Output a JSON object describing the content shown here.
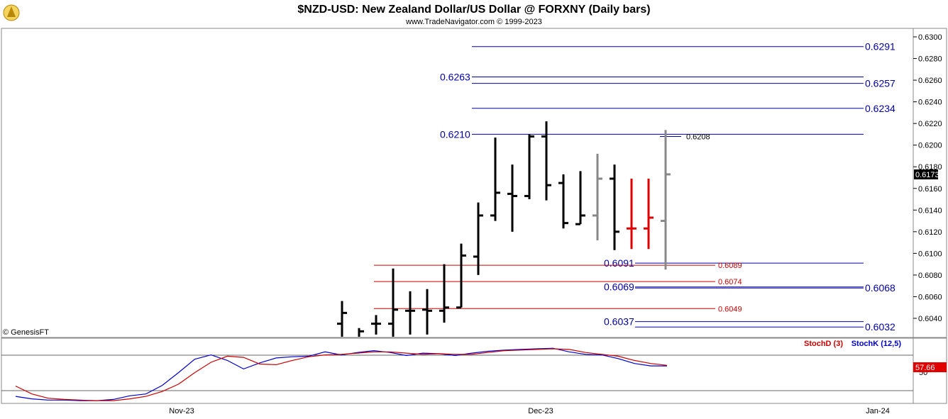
{
  "header": {
    "title": "$NZD-USD:  New Zealand Dollar/US Dollar @ FORXNY  (Daily bars)",
    "subtitle": "www.TradeNavigator.com © 1999-2023",
    "watermark": "© GenesisFT"
  },
  "colors": {
    "bar_up": "#000000",
    "bar_gray": "#888888",
    "bar_red": "#e00000",
    "level_blue": "#0000aa",
    "level_red": "#cc0000",
    "stoch_k": "#0000cc",
    "stoch_d": "#cc0000"
  },
  "chart_data": [
    {
      "type": "ohlc",
      "name": "price",
      "x_ticks": [
        "Nov-23",
        "Dec-23",
        "Jan-24"
      ],
      "ylim": [
        0.6032,
        0.6305
      ],
      "y_ticks": [
        "0.6040",
        "0.6060",
        "0.6080",
        "0.6100",
        "0.6120",
        "0.6140",
        "0.6160",
        "0.6180",
        "0.6200",
        "0.6220",
        "0.6240",
        "0.6260",
        "0.6280",
        "0.6300"
      ],
      "last_price": "0.6173",
      "bars": [
        {
          "h": 0.6056,
          "l": 0.602,
          "o": 0.6035,
          "c": 0.6045,
          "color": "black"
        },
        {
          "h": 0.6031,
          "l": 0.602,
          "o": 0.6022,
          "c": 0.6028,
          "color": "black"
        },
        {
          "h": 0.6043,
          "l": 0.6025,
          "o": 0.6035,
          "c": 0.6035,
          "color": "black"
        },
        {
          "h": 0.6086,
          "l": 0.602,
          "o": 0.6035,
          "c": 0.6048,
          "color": "black"
        },
        {
          "h": 0.6065,
          "l": 0.6025,
          "o": 0.6047,
          "c": 0.6047,
          "color": "black"
        },
        {
          "h": 0.6067,
          "l": 0.6025,
          "o": 0.6048,
          "c": 0.6047,
          "color": "black"
        },
        {
          "h": 0.609,
          "l": 0.6036,
          "o": 0.6047,
          "c": 0.605,
          "color": "black"
        },
        {
          "h": 0.6109,
          "l": 0.605,
          "o": 0.605,
          "c": 0.6098,
          "color": "black"
        },
        {
          "h": 0.6147,
          "l": 0.608,
          "o": 0.6097,
          "c": 0.6135,
          "color": "black"
        },
        {
          "h": 0.6207,
          "l": 0.613,
          "o": 0.6135,
          "c": 0.6156,
          "color": "black"
        },
        {
          "h": 0.6182,
          "l": 0.612,
          "o": 0.6155,
          "c": 0.6153,
          "color": "black"
        },
        {
          "h": 0.621,
          "l": 0.615,
          "o": 0.6153,
          "c": 0.6208,
          "color": "black"
        },
        {
          "h": 0.6222,
          "l": 0.6149,
          "o": 0.6208,
          "c": 0.6163,
          "color": "black"
        },
        {
          "h": 0.6173,
          "l": 0.6123,
          "o": 0.6165,
          "c": 0.6128,
          "color": "black"
        },
        {
          "h": 0.6176,
          "l": 0.6127,
          "o": 0.6127,
          "c": 0.6135,
          "color": "black"
        },
        {
          "h": 0.6192,
          "l": 0.6112,
          "o": 0.6135,
          "c": 0.6169,
          "color": "gray"
        },
        {
          "h": 0.6182,
          "l": 0.6103,
          "o": 0.6169,
          "c": 0.612,
          "color": "black"
        },
        {
          "h": 0.6169,
          "l": 0.6104,
          "o": 0.6123,
          "c": 0.6123,
          "color": "red"
        },
        {
          "h": 0.6169,
          "l": 0.6104,
          "o": 0.6123,
          "c": 0.6133,
          "color": "red"
        },
        {
          "h": 0.6214,
          "l": 0.6085,
          "o": 0.613,
          "c": 0.6173,
          "color": "gray"
        }
      ],
      "levels": [
        {
          "value": 0.6291,
          "label_right": "0.6291",
          "label_left": "",
          "color": "blue"
        },
        {
          "value": 0.6263,
          "label_right": "",
          "label_left": "0.6263",
          "color": "blue"
        },
        {
          "value": 0.6257,
          "label_right": "0.6257",
          "label_left": "",
          "color": "blue"
        },
        {
          "value": 0.6234,
          "label_right": "0.6234",
          "label_left": "",
          "color": "blue"
        },
        {
          "value": 0.621,
          "label_right": "",
          "label_left": "0.6210",
          "color": "blue"
        },
        {
          "value": 0.6208,
          "label_right": "",
          "label_left": "",
          "color": "blue",
          "note": "0.6208"
        },
        {
          "value": 0.6091,
          "label_right": "",
          "label_left": "0.6091",
          "color": "blue"
        },
        {
          "value": 0.6089,
          "label_right": "",
          "label_left": "",
          "color": "red",
          "note": "0.6089"
        },
        {
          "value": 0.6074,
          "label_right": "",
          "label_left": "",
          "color": "red",
          "note": "0.6074"
        },
        {
          "value": 0.6069,
          "label_right": "",
          "label_left": "0.6069",
          "color": "blue"
        },
        {
          "value": 0.6068,
          "label_right": "0.6068",
          "label_left": "",
          "color": "blue"
        },
        {
          "value": 0.6049,
          "label_right": "",
          "label_left": "",
          "color": "red",
          "note": "0.6049"
        },
        {
          "value": 0.6037,
          "label_right": "",
          "label_left": "0.6037",
          "color": "blue"
        },
        {
          "value": 0.6032,
          "label_right": "0.6032",
          "label_left": "",
          "color": "blue"
        }
      ]
    },
    {
      "type": "line",
      "name": "stochastic",
      "legend": [
        "StochD (3)",
        "StochK (12,5)"
      ],
      "ylim": [
        0,
        100
      ],
      "y_ticks": [
        "50"
      ],
      "last_value": "57.66",
      "series": [
        {
          "name": "StochK (12,5)",
          "values": [
            8,
            4,
            2,
            2,
            1,
            1,
            3,
            9,
            12,
            26,
            47,
            69,
            76,
            67,
            53,
            63,
            71,
            73,
            74,
            81,
            76,
            80,
            83,
            80,
            75,
            79,
            78,
            75,
            79,
            82,
            84,
            85,
            86,
            87,
            81,
            77,
            76,
            70,
            62,
            58,
            58
          ]
        },
        {
          "name": "StochD (3)",
          "values": [
            25,
            12,
            5,
            3,
            2,
            1,
            1,
            4,
            8,
            16,
            28,
            47,
            64,
            74,
            72,
            61,
            60,
            67,
            73,
            76,
            77,
            79,
            81,
            81,
            79,
            77,
            78,
            77,
            77,
            80,
            83,
            84,
            85,
            86,
            85,
            80,
            77,
            74,
            67,
            62,
            59
          ]
        }
      ]
    }
  ]
}
